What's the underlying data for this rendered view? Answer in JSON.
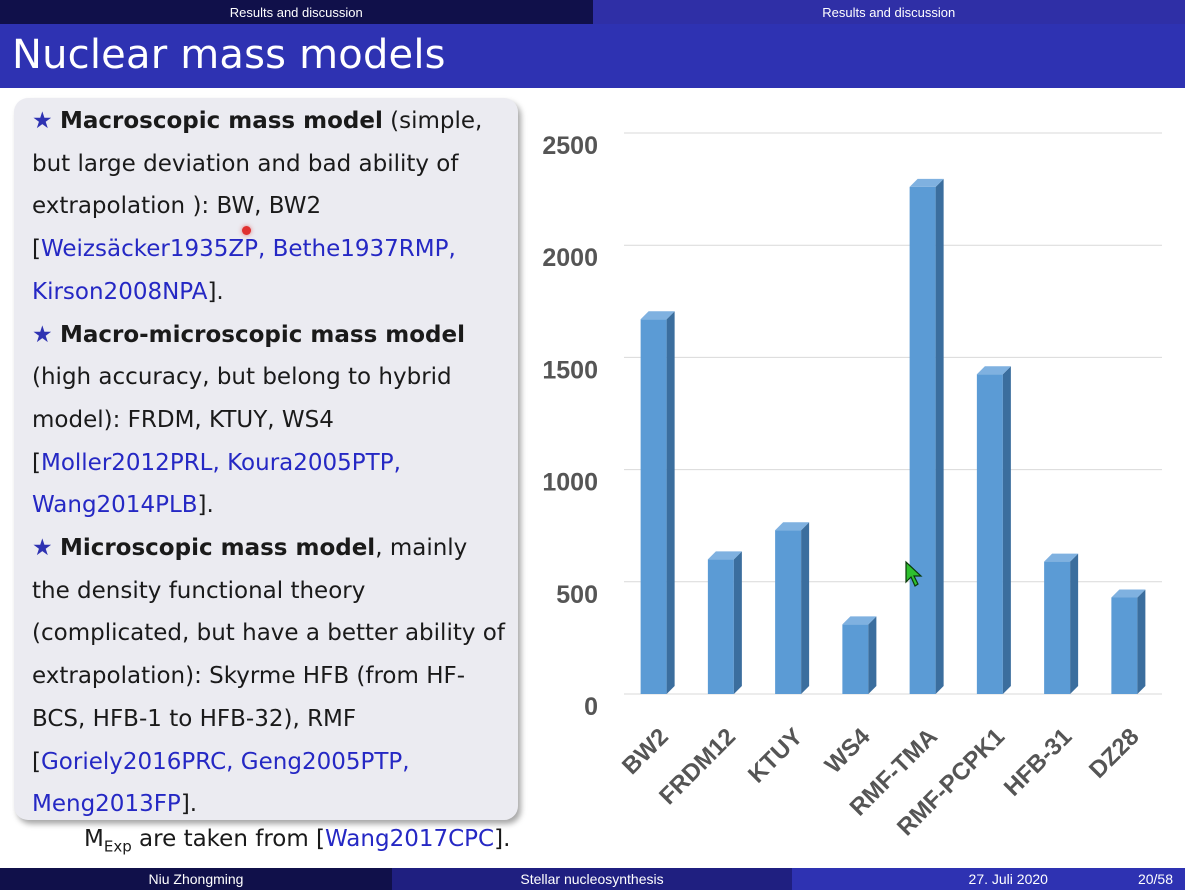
{
  "header": {
    "left_section": "Results and discussion",
    "right_section": "Results and discussion"
  },
  "slide": {
    "title": "Nuclear mass models"
  },
  "panel": {
    "star": "★",
    "item1_bold": "Macroscopic mass model",
    "item1_text": " (simple, but large deviation and bad ability of extrapolation ): BW, BW2 ",
    "item1_refs": "Weizsäcker1935ZP, Bethe1937RMP, Kirson2008NPA",
    "item2_bold": "Macro-microscopic mass model",
    "item2_text": " (high accuracy, but belong to hybrid model): FRDM, KTUY, WS4 ",
    "item2_refs": "Moller2012PRL, Koura2005PTP, Wang2014PLB",
    "item3_bold": "Microscopic mass model",
    "item3_text": ", mainly the density functional theory (complicated, but have a better ability of extrapolation): Skyrme HFB (from HF-BCS, HFB-1 to HFB-32), RMF ",
    "item3_refs": "Goriely2016PRC, Geng2005PTP, Meng2013FP"
  },
  "source": {
    "m": "M",
    "sub": "Exp",
    "text": " are taken from [",
    "ref": "Wang2017CPC",
    "end": "]."
  },
  "chart_data": {
    "type": "bar",
    "categories": [
      "BW2",
      "FRDM12",
      "KTUY",
      "WS4",
      "RMF-TMA",
      "RMF-PCPK1",
      "HFB-31",
      "DZ28"
    ],
    "values": [
      1670,
      600,
      730,
      310,
      2260,
      1425,
      590,
      430
    ],
    "yticks": [
      0,
      500,
      1000,
      1500,
      2000,
      2500
    ],
    "ylim": [
      0,
      2500
    ],
    "grid": true,
    "bar_color": "#5b9bd5",
    "bar_side_color": "#3b6e9e",
    "bar_top_color": "#7fb1e0"
  },
  "footer": {
    "author": "Niu Zhongming",
    "talk": "Stellar nucleosynthesis",
    "date": "27. Juli 2020",
    "page": "20/58"
  }
}
